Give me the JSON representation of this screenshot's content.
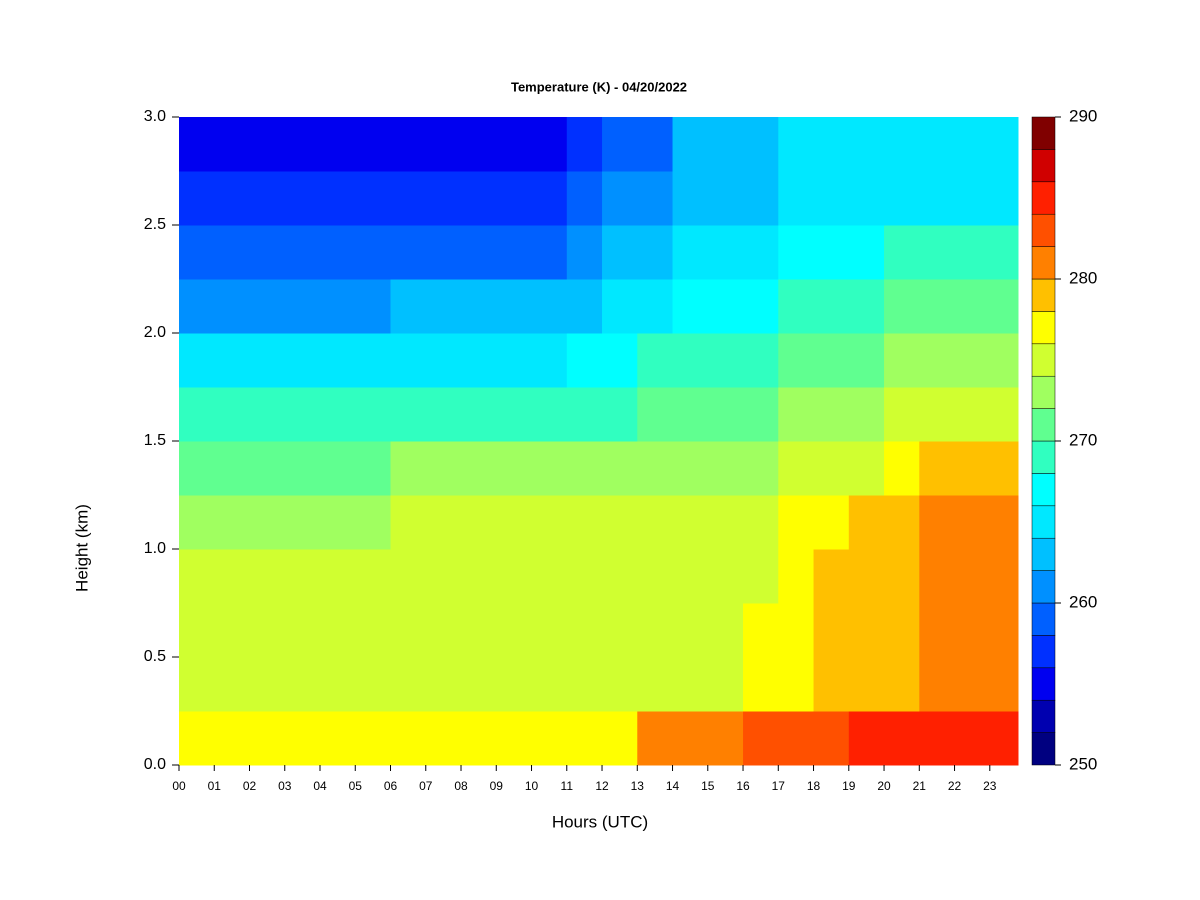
{
  "chart_data": {
    "type": "heatmap",
    "title": "Temperature (K) - 04/20/2022",
    "x_label": "Hours (UTC)",
    "y_label": "Height (km)",
    "xlim": [
      0,
      23.8
    ],
    "ylim": [
      0,
      3.0
    ],
    "xticks": [
      {
        "value": 0,
        "label": "00"
      },
      {
        "value": 1,
        "label": "01"
      },
      {
        "value": 2,
        "label": "02"
      },
      {
        "value": 3,
        "label": "03"
      },
      {
        "value": 4,
        "label": "04"
      },
      {
        "value": 5,
        "label": "05"
      },
      {
        "value": 6,
        "label": "06"
      },
      {
        "value": 7,
        "label": "07"
      },
      {
        "value": 8,
        "label": "08"
      },
      {
        "value": 9,
        "label": "09"
      },
      {
        "value": 10,
        "label": "10"
      },
      {
        "value": 11,
        "label": "11"
      },
      {
        "value": 12,
        "label": "12"
      },
      {
        "value": 13,
        "label": "13"
      },
      {
        "value": 14,
        "label": "14"
      },
      {
        "value": 15,
        "label": "15"
      },
      {
        "value": 16,
        "label": "16"
      },
      {
        "value": 17,
        "label": "17"
      },
      {
        "value": 18,
        "label": "18"
      },
      {
        "value": 19,
        "label": "19"
      },
      {
        "value": 20,
        "label": "20"
      },
      {
        "value": 21,
        "label": "21"
      },
      {
        "value": 22,
        "label": "22"
      },
      {
        "value": 23,
        "label": "23"
      }
    ],
    "yticks": [
      {
        "value": 0,
        "label": "0.0"
      },
      0.5,
      {
        "value": 1,
        "label": "1.0"
      },
      1.5,
      {
        "value": 2,
        "label": "2.0"
      },
      2.5,
      {
        "value": 3,
        "label": "3.0"
      }
    ],
    "x": [
      0.5,
      1.5,
      2.5,
      3.5,
      4.5,
      5.5,
      6.5,
      7.5,
      8.5,
      9.5,
      10.5,
      11.5,
      12.5,
      13.5,
      14.5,
      15.5,
      16.5,
      17.5,
      18.5,
      19.5,
      20.5,
      21.5,
      22.5,
      23.5
    ],
    "y": [
      0.125,
      0.375,
      0.625,
      0.875,
      1.125,
      1.375,
      1.625,
      1.875,
      2.125,
      2.375,
      2.625,
      2.875
    ],
    "z": [
      [
        277,
        277,
        277,
        277,
        277,
        277,
        277,
        277,
        277,
        277,
        277,
        277,
        277,
        281,
        281,
        281,
        283,
        283,
        283,
        285,
        285,
        285,
        285,
        285
      ],
      [
        275,
        275,
        275,
        275,
        275,
        275,
        275,
        275,
        275,
        275,
        275,
        275,
        275,
        275,
        275,
        275,
        276,
        277,
        278,
        279,
        279,
        281,
        281,
        281
      ],
      [
        274.5,
        274.5,
        274.5,
        274.5,
        274.5,
        274.5,
        274.5,
        274.5,
        274.5,
        274.5,
        274.5,
        274.5,
        274.5,
        274.5,
        274.5,
        274.5,
        276,
        277,
        278,
        279,
        279,
        281,
        281,
        281
      ],
      [
        274,
        274,
        274,
        274,
        274,
        274,
        274,
        274,
        274,
        274,
        274,
        274,
        274,
        274,
        274,
        274,
        275.5,
        277,
        278,
        279,
        279,
        281,
        281,
        281
      ],
      [
        273,
        273,
        273,
        273,
        273,
        273,
        274,
        274,
        274,
        274,
        274,
        274,
        274,
        274,
        274,
        274,
        275,
        277,
        277,
        279,
        279,
        280,
        280,
        280
      ],
      [
        271,
        271,
        271,
        271,
        271,
        271,
        272,
        272,
        272,
        272,
        272,
        272,
        272,
        273,
        273,
        273,
        273,
        275,
        275,
        275,
        277,
        279,
        279,
        279
      ],
      [
        268,
        268,
        268,
        268,
        268,
        268,
        269,
        269,
        269,
        269,
        269,
        269,
        269,
        271,
        271,
        271,
        271,
        273,
        273,
        273,
        274,
        274,
        274,
        274
      ],
      [
        264,
        264,
        264,
        264,
        264,
        264,
        265,
        265,
        265,
        265,
        265,
        266,
        266,
        268,
        268,
        268,
        268,
        270,
        270,
        270,
        272,
        272,
        272,
        272
      ],
      [
        261,
        261,
        261,
        261,
        261,
        261,
        262,
        262,
        262,
        262,
        262,
        263,
        265,
        265,
        266,
        266,
        266,
        268,
        268,
        268,
        270,
        270,
        270,
        270
      ],
      [
        258,
        258,
        258,
        258,
        258,
        258,
        259,
        259,
        259,
        259,
        259,
        260,
        262,
        262,
        265,
        265,
        265,
        267,
        267,
        267,
        268,
        268,
        268,
        268
      ],
      [
        256,
        256,
        256,
        256,
        256,
        256,
        257,
        257,
        257,
        257,
        257,
        258,
        261,
        261,
        263,
        263,
        263,
        265,
        265,
        265,
        265,
        265,
        265,
        265
      ],
      [
        254,
        254,
        254,
        254,
        254,
        254,
        255,
        255,
        255,
        255,
        255,
        256,
        259,
        259,
        262,
        262,
        262,
        264,
        264,
        264,
        264,
        264,
        264,
        264
      ]
    ],
    "colorbar": {
      "lim": [
        250,
        290
      ],
      "ticks": [
        250,
        260,
        270,
        280,
        290
      ],
      "colors": [
        "#000080",
        "#0000b0",
        "#0000f0",
        "#0030ff",
        "#0060ff",
        "#0090ff",
        "#00c0ff",
        "#00e8ff",
        "#00ffff",
        "#30ffc0",
        "#60ff90",
        "#a0ff60",
        "#d0ff30",
        "#ffff00",
        "#ffc000",
        "#ff8000",
        "#ff5000",
        "#ff2000",
        "#d00000",
        "#800000"
      ]
    }
  }
}
